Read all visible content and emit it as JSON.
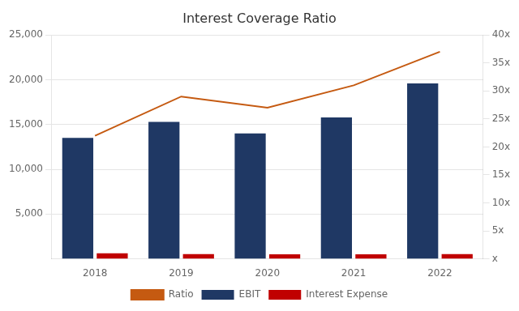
{
  "chart_data": {
    "type": "bar",
    "title": "Interest Coverage Ratio",
    "categories": [
      "2018",
      "2019",
      "2020",
      "2021",
      "2022"
    ],
    "series": [
      {
        "name": "EBIT",
        "type": "bar",
        "color": "#1F3864",
        "values": [
          13500,
          15300,
          14000,
          15800,
          19600
        ]
      },
      {
        "name": "Interest Expense",
        "type": "bar",
        "color": "#C00000",
        "values": [
          620,
          530,
          510,
          510,
          530
        ]
      },
      {
        "name": "Ratio",
        "type": "line",
        "color": "#C55A11",
        "axis": "y2",
        "values": [
          22.0,
          29.0,
          27.0,
          31.0,
          37.0
        ]
      }
    ],
    "ylim": [
      0,
      25000
    ],
    "yticks": [
      {
        "value": 5000,
        "label": "5,000"
      },
      {
        "value": 10000,
        "label": "10,000"
      },
      {
        "value": 15000,
        "label": "15,000"
      },
      {
        "value": 20000,
        "label": "20,000"
      },
      {
        "value": 25000,
        "label": "25,000"
      }
    ],
    "y2lim": [
      0,
      40
    ],
    "y2ticks": [
      {
        "value": 0,
        "label": "x"
      },
      {
        "value": 5,
        "label": "5x"
      },
      {
        "value": 10,
        "label": "10x"
      },
      {
        "value": 15,
        "label": "15x"
      },
      {
        "value": 20,
        "label": "20x"
      },
      {
        "value": 25,
        "label": "25x"
      },
      {
        "value": 30,
        "label": "30x"
      },
      {
        "value": 35,
        "label": "35x"
      },
      {
        "value": 40,
        "label": "40x"
      }
    ],
    "grid": true,
    "legend": "bottom"
  }
}
